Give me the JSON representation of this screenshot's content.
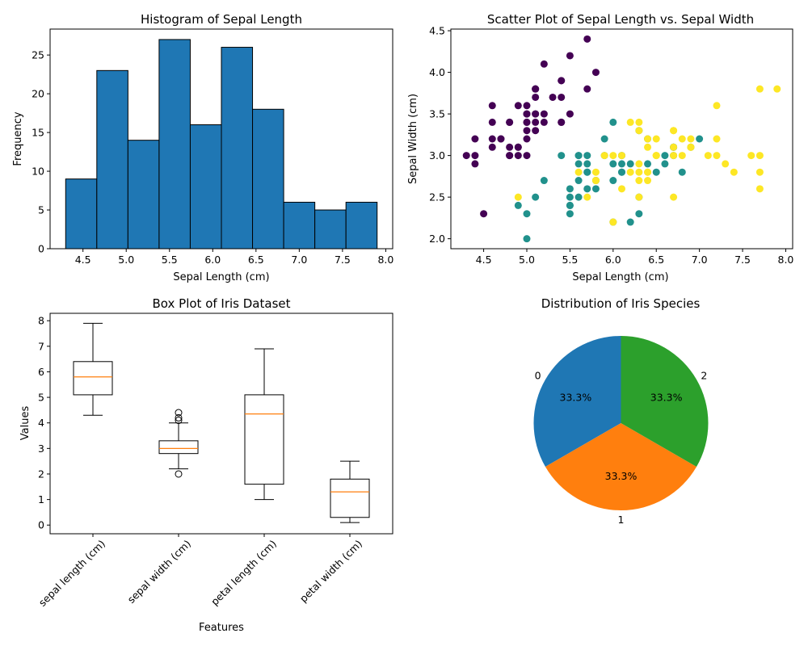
{
  "chart_data": [
    {
      "id": "hist",
      "type": "bar",
      "title": "Histogram of Sepal Length",
      "xlabel": "Sepal Length (cm)",
      "ylabel": "Frequency",
      "bin_edges": [
        4.3,
        4.66,
        5.02,
        5.38,
        5.74,
        6.1,
        6.46,
        6.82,
        7.18,
        7.54,
        7.9
      ],
      "values": [
        9,
        23,
        14,
        27,
        16,
        26,
        18,
        6,
        5,
        6
      ],
      "xticks": [
        4.5,
        5.0,
        5.5,
        6.0,
        6.5,
        7.0,
        7.5,
        8.0
      ],
      "xtick_labels": [
        "4.5",
        "5.0",
        "5.5",
        "6.0",
        "6.5",
        "7.0",
        "7.5",
        "8.0"
      ],
      "yticks": [
        0,
        5,
        10,
        15,
        20,
        25
      ],
      "ytick_labels": [
        "0",
        "5",
        "10",
        "15",
        "20",
        "25"
      ],
      "xlim": [
        4.12,
        8.08
      ],
      "ylim": [
        0,
        28.35
      ],
      "color": "#1f77b4",
      "edgecolor": "#000000"
    },
    {
      "id": "scatter",
      "type": "scatter",
      "title": "Scatter Plot of Sepal Length vs. Sepal Width",
      "xlabel": "Sepal Length (cm)",
      "ylabel": "Sepal Width (cm)",
      "xticks": [
        4.5,
        5.0,
        5.5,
        6.0,
        6.5,
        7.0,
        7.5,
        8.0
      ],
      "xtick_labels": [
        "4.5",
        "5.0",
        "5.5",
        "6.0",
        "6.5",
        "7.0",
        "7.5",
        "8.0"
      ],
      "yticks": [
        2.0,
        2.5,
        3.0,
        3.5,
        4.0,
        4.5
      ],
      "ytick_labels": [
        "2.0",
        "2.5",
        "3.0",
        "3.5",
        "4.0",
        "4.5"
      ],
      "xlim": [
        4.12,
        8.08
      ],
      "ylim": [
        1.88,
        4.52
      ],
      "series": [
        {
          "color": "#440154",
          "x": [
            5.1,
            4.9,
            4.7,
            4.6,
            5.0,
            5.4,
            4.6,
            5.0,
            4.4,
            4.9,
            5.4,
            4.8,
            4.8,
            4.3,
            5.8,
            5.7,
            5.4,
            5.1,
            5.7,
            5.1,
            5.4,
            5.1,
            4.6,
            5.1,
            4.8,
            5.0,
            5.0,
            5.2,
            5.2,
            4.7,
            4.8,
            5.4,
            5.2,
            5.5,
            4.9,
            5.0,
            5.5,
            4.9,
            4.4,
            5.1,
            5.0,
            4.5,
            4.4,
            5.0,
            5.1,
            4.8,
            5.1,
            4.6,
            5.3,
            5.0
          ],
          "y": [
            3.5,
            3.0,
            3.2,
            3.1,
            3.6,
            3.9,
            3.4,
            3.4,
            2.9,
            3.1,
            3.7,
            3.4,
            3.0,
            3.0,
            4.0,
            4.4,
            3.9,
            3.5,
            3.8,
            3.8,
            3.4,
            3.7,
            3.6,
            3.3,
            3.4,
            3.0,
            3.4,
            3.5,
            3.4,
            3.2,
            3.1,
            3.4,
            4.1,
            4.2,
            3.1,
            3.2,
            3.5,
            3.6,
            3.0,
            3.4,
            3.5,
            2.3,
            3.2,
            3.5,
            3.8,
            3.0,
            3.8,
            3.2,
            3.7,
            3.3
          ]
        },
        {
          "color": "#21918c",
          "x": [
            7.0,
            6.4,
            6.9,
            5.5,
            6.5,
            5.7,
            6.3,
            4.9,
            6.6,
            5.2,
            5.0,
            5.9,
            6.0,
            6.1,
            5.6,
            6.7,
            5.6,
            5.8,
            6.2,
            5.6,
            5.9,
            6.1,
            6.3,
            6.1,
            6.4,
            6.6,
            6.8,
            6.7,
            6.0,
            5.7,
            5.5,
            5.5,
            5.8,
            6.0,
            5.4,
            6.0,
            6.7,
            6.3,
            5.6,
            5.5,
            5.5,
            6.1,
            5.8,
            5.0,
            5.6,
            5.7,
            5.7,
            6.2,
            5.1,
            5.7
          ],
          "y": [
            3.2,
            3.2,
            3.1,
            2.3,
            2.8,
            2.8,
            3.3,
            2.4,
            2.9,
            2.7,
            2.0,
            3.0,
            2.2,
            2.9,
            2.9,
            3.1,
            3.0,
            2.7,
            2.2,
            2.5,
            3.2,
            2.8,
            2.5,
            2.8,
            2.9,
            3.0,
            2.8,
            3.0,
            2.9,
            2.6,
            2.4,
            2.4,
            2.7,
            2.7,
            3.0,
            3.4,
            3.1,
            2.3,
            3.0,
            2.5,
            2.6,
            3.0,
            2.6,
            2.3,
            2.7,
            3.0,
            2.9,
            2.9,
            2.5,
            2.8
          ]
        },
        {
          "color": "#fde725",
          "x": [
            6.3,
            5.8,
            7.1,
            6.3,
            6.5,
            7.6,
            4.9,
            7.3,
            6.7,
            7.2,
            6.5,
            6.4,
            6.8,
            5.7,
            5.8,
            6.4,
            6.5,
            7.7,
            7.7,
            6.0,
            6.9,
            5.6,
            7.7,
            6.3,
            6.7,
            7.2,
            6.2,
            6.1,
            6.4,
            7.2,
            7.4,
            7.9,
            6.4,
            6.3,
            6.1,
            7.7,
            6.3,
            6.4,
            6.0,
            6.9,
            6.7,
            6.9,
            5.8,
            6.8,
            6.7,
            6.7,
            6.3,
            6.5,
            6.2,
            5.9
          ],
          "y": [
            3.3,
            2.7,
            3.0,
            2.9,
            3.0,
            3.0,
            2.5,
            2.9,
            2.5,
            3.6,
            3.2,
            2.7,
            3.0,
            2.5,
            2.8,
            3.2,
            3.0,
            3.8,
            2.6,
            2.2,
            3.2,
            2.8,
            2.8,
            2.7,
            3.3,
            3.2,
            2.8,
            3.0,
            2.8,
            3.0,
            2.8,
            3.8,
            2.8,
            2.8,
            2.6,
            3.0,
            3.4,
            3.1,
            3.0,
            3.1,
            3.1,
            3.1,
            2.7,
            3.2,
            3.3,
            3.0,
            2.5,
            3.0,
            3.4,
            3.0
          ]
        }
      ]
    },
    {
      "id": "box",
      "type": "box",
      "title": "Box Plot of Iris Dataset",
      "xlabel": "Features",
      "ylabel": "Values",
      "categories": [
        "sepal length (cm)",
        "sepal width (cm)",
        "petal length (cm)",
        "petal width (cm)"
      ],
      "yticks": [
        0,
        1,
        2,
        3,
        4,
        5,
        6,
        7,
        8
      ],
      "ytick_labels": [
        "0",
        "1",
        "2",
        "3",
        "4",
        "5",
        "6",
        "7",
        "8"
      ],
      "ylim": [
        -0.34,
        8.29
      ],
      "boxes": [
        {
          "whislo": 4.3,
          "q1": 5.1,
          "med": 5.8,
          "q3": 6.4,
          "whishi": 7.9,
          "fliers": []
        },
        {
          "whislo": 2.2,
          "q1": 2.8,
          "med": 3.0,
          "q3": 3.3,
          "whishi": 4.0,
          "fliers": [
            4.4,
            4.1,
            4.2,
            2.0
          ]
        },
        {
          "whislo": 1.0,
          "q1": 1.6,
          "med": 4.35,
          "q3": 5.1,
          "whishi": 6.9,
          "fliers": []
        },
        {
          "whislo": 0.1,
          "q1": 0.3,
          "med": 1.3,
          "q3": 1.8,
          "whishi": 2.5,
          "fliers": []
        }
      ],
      "median_color": "#ff7f0e"
    },
    {
      "id": "pie",
      "type": "pie",
      "title": "Distribution of Iris Species",
      "labels": [
        "0",
        "1",
        "2"
      ],
      "values": [
        50,
        50,
        50
      ],
      "pct_labels": [
        "33.3%",
        "33.3%",
        "33.3%"
      ],
      "colors": [
        "#1f77b4",
        "#ff7f0e",
        "#2ca02c"
      ],
      "startangle": 90
    }
  ]
}
